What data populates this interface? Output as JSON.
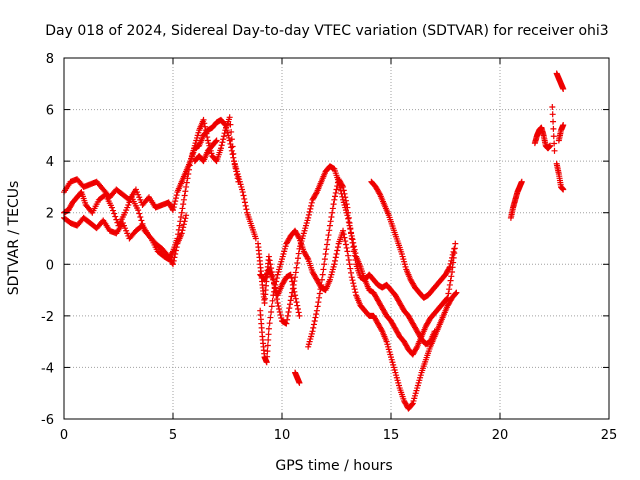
{
  "chart_data": {
    "type": "scatter",
    "title": "Day 018 of 2024, Sidereal Day-to-day VTEC variation (SDTVAR) for receiver ohi3",
    "xlabel": "GPS time / hours",
    "ylabel": "SDTVAR / TECUs",
    "xlim": [
      0,
      25
    ],
    "ylim": [
      -6,
      8
    ],
    "xticks": [
      "0",
      "5",
      "10",
      "15",
      "20",
      "25"
    ],
    "yticks": [
      "-6",
      "-4",
      "-2",
      "0",
      "2",
      "4",
      "6",
      "8"
    ],
    "grid": true,
    "marker": "+",
    "color": "#ee0000",
    "series": [
      {
        "x": [
          0.0,
          0.3,
          0.6,
          0.9,
          1.2,
          1.5,
          1.8,
          2.1,
          2.4,
          2.7,
          3.0,
          3.3,
          3.6,
          3.9,
          4.2,
          4.5,
          4.8,
          5.0,
          5.2,
          5.4,
          5.6,
          5.8,
          6.0,
          6.2,
          6.4,
          6.6,
          6.8,
          7.0,
          7.2,
          7.4,
          7.6,
          7.8,
          8.0,
          8.2,
          8.4,
          8.6,
          8.8
        ],
        "y": [
          2.8,
          3.2,
          3.3,
          3.0,
          3.1,
          3.2,
          2.9,
          2.6,
          2.9,
          2.7,
          2.5,
          2.9,
          2.3,
          2.6,
          2.2,
          2.3,
          2.4,
          2.1,
          2.8,
          3.2,
          3.6,
          4.0,
          4.5,
          4.6,
          5.0,
          5.2,
          5.3,
          5.5,
          5.6,
          5.4,
          4.8,
          4.0,
          3.4,
          2.8,
          2.0,
          1.5,
          1.0
        ]
      },
      {
        "x": [
          0.0,
          0.2,
          0.4,
          0.6,
          0.8,
          1.0,
          1.3,
          1.6,
          1.9,
          2.2,
          2.5,
          2.8,
          3.1,
          3.4,
          3.7,
          4.0,
          4.3,
          4.6,
          4.8,
          5.0,
          5.2,
          5.4,
          5.6,
          5.8,
          6.0,
          6.2,
          6.4,
          6.6,
          6.8,
          7.0,
          7.2,
          7.4,
          7.6,
          7.8,
          8.0
        ],
        "y": [
          2.0,
          2.1,
          2.4,
          2.6,
          2.8,
          2.3,
          2.0,
          2.5,
          2.7,
          2.2,
          1.5,
          2.0,
          2.6,
          2.1,
          1.3,
          1.0,
          0.5,
          0.3,
          0.2,
          0.5,
          1.0,
          2.0,
          3.0,
          4.0,
          4.6,
          5.2,
          5.6,
          4.8,
          4.2,
          4.0,
          4.5,
          5.2,
          5.7,
          4.0,
          3.2
        ]
      },
      {
        "x": [
          0.0,
          0.3,
          0.6,
          0.9,
          1.2,
          1.5,
          1.8,
          2.1,
          2.4,
          2.7,
          3.0,
          3.3,
          3.6,
          3.9,
          4.2,
          4.5,
          4.8,
          5.0,
          5.2,
          5.4,
          5.6
        ],
        "y": [
          1.8,
          1.6,
          1.5,
          1.8,
          1.6,
          1.4,
          1.7,
          1.3,
          1.2,
          1.6,
          1.0,
          1.3,
          1.5,
          1.1,
          0.8,
          0.6,
          0.3,
          0.0,
          0.8,
          1.2,
          1.9
        ]
      },
      {
        "x": [
          6.0,
          6.2,
          6.4,
          6.6,
          6.8,
          7.0
        ],
        "y": [
          4.0,
          4.2,
          4.0,
          4.4,
          4.6,
          4.8
        ]
      },
      {
        "x": [
          8.9,
          9.0,
          9.1,
          9.2,
          9.3,
          9.4,
          9.6,
          9.8,
          10.0,
          10.2,
          10.4,
          10.6,
          10.8,
          11.0,
          11.2,
          11.4,
          11.6,
          11.8,
          12.0,
          12.2,
          12.4,
          12.6,
          12.8,
          13.0,
          13.2,
          13.4,
          13.6,
          13.8,
          14.0,
          14.2,
          14.4,
          14.6,
          14.8,
          15.0,
          15.2,
          15.4,
          15.6,
          15.8,
          16.0,
          16.2,
          16.4,
          16.6,
          16.8,
          17.0,
          17.2,
          17.4,
          17.6,
          17.8,
          17.95
        ],
        "y": [
          0.8,
          0.0,
          -0.8,
          -1.5,
          -0.5,
          0.3,
          -0.6,
          -1.5,
          -2.2,
          -2.3,
          -1.4,
          -0.5,
          0.6,
          1.2,
          1.8,
          2.5,
          2.8,
          3.2,
          3.6,
          3.8,
          3.7,
          3.2,
          2.5,
          1.9,
          1.1,
          0.3,
          -0.1,
          -0.6,
          -1.0,
          -1.1,
          -1.4,
          -1.7,
          -2.0,
          -2.2,
          -2.5,
          -2.8,
          -3.0,
          -3.3,
          -3.5,
          -3.2,
          -2.8,
          -2.4,
          -2.1,
          -1.9,
          -1.7,
          -1.5,
          -1.3,
          -0.3,
          0.8
        ]
      },
      {
        "x": [
          9.0,
          9.1,
          9.2,
          9.3,
          9.4,
          9.6,
          9.8,
          10.0,
          10.2,
          10.4,
          10.6,
          10.8,
          11.0,
          11.2,
          11.4,
          11.6,
          11.8,
          12.0,
          12.2,
          12.4,
          12.6,
          12.8,
          13.0,
          13.2,
          13.4,
          13.6,
          13.8,
          14.0,
          14.2,
          14.4,
          14.6,
          14.8,
          15.0,
          15.2,
          15.4,
          15.6,
          15.8,
          16.0,
          16.2,
          16.4,
          16.6,
          16.8,
          17.0,
          17.2,
          17.4,
          17.6,
          17.8,
          18.0
        ],
        "y": [
          -1.8,
          -2.8,
          -3.6,
          -3.8,
          -2.5,
          -1.2,
          -0.4,
          0.2,
          0.8,
          1.1,
          1.3,
          1.0,
          0.5,
          0.2,
          -0.3,
          -0.6,
          -0.9,
          -1.0,
          -0.6,
          0.0,
          0.8,
          1.3,
          0.5,
          -0.5,
          -1.2,
          -1.6,
          -1.8,
          -2.0,
          -2.0,
          -2.3,
          -2.6,
          -3.0,
          -3.6,
          -4.2,
          -4.8,
          -5.3,
          -5.6,
          -5.4,
          -4.8,
          -4.2,
          -3.7,
          -3.2,
          -2.8,
          -2.4,
          -2.0,
          -1.6,
          -1.3,
          -1.1
        ]
      },
      {
        "x": [
          9.0,
          9.2,
          9.4,
          9.6,
          9.8,
          10.0,
          10.2,
          10.4,
          10.6,
          10.8
        ],
        "y": [
          -0.4,
          -0.6,
          -0.2,
          -0.6,
          -1.2,
          -0.8,
          -0.5,
          -0.4,
          -1.2,
          -2.0
        ]
      },
      {
        "x": [
          10.6,
          10.7,
          10.8
        ],
        "y": [
          -4.2,
          -4.4,
          -4.6
        ]
      },
      {
        "x": [
          11.2,
          11.4,
          11.6,
          11.8,
          12.0,
          12.2,
          12.4,
          12.6,
          12.8,
          13.0,
          13.2,
          13.4,
          13.6,
          13.8,
          14.0,
          14.2,
          14.4,
          14.6,
          14.8,
          15.0,
          15.2,
          15.4,
          15.6,
          15.8,
          16.0,
          16.2,
          16.4,
          16.6,
          16.8,
          17.0
        ],
        "y": [
          -3.2,
          -2.6,
          -1.8,
          -0.8,
          0.4,
          1.5,
          2.5,
          3.3,
          3.0,
          2.2,
          1.0,
          0.0,
          -0.5,
          -0.6,
          -0.4,
          -0.6,
          -0.8,
          -0.9,
          -0.8,
          -1.0,
          -1.2,
          -1.5,
          -1.8,
          -2.0,
          -2.3,
          -2.6,
          -2.9,
          -3.1,
          -3.0,
          -2.6
        ]
      },
      {
        "x": [
          14.1,
          14.3,
          14.5,
          14.7,
          14.9,
          15.1,
          15.3,
          15.5,
          15.7,
          15.9,
          16.1,
          16.3,
          16.5,
          16.7,
          16.9,
          17.1,
          17.3,
          17.5,
          17.7,
          17.9
        ],
        "y": [
          3.2,
          3.0,
          2.7,
          2.3,
          1.9,
          1.4,
          0.9,
          0.4,
          -0.2,
          -0.6,
          -0.9,
          -1.1,
          -1.3,
          -1.2,
          -1.0,
          -0.8,
          -0.6,
          -0.4,
          -0.1,
          0.6
        ]
      },
      {
        "x": [
          20.5,
          20.6,
          20.7,
          20.8,
          20.9,
          21.0
        ],
        "y": [
          1.8,
          2.2,
          2.5,
          2.8,
          3.0,
          3.2
        ]
      },
      {
        "x": [
          21.6,
          21.7,
          21.8,
          21.9,
          22.0,
          22.1,
          22.2,
          22.3
        ],
        "y": [
          4.7,
          5.0,
          5.2,
          5.3,
          5.0,
          4.6,
          4.5,
          4.6
        ]
      },
      {
        "x": [
          22.4,
          22.5
        ],
        "y": [
          6.1,
          4.4
        ]
      },
      {
        "x": [
          22.6,
          22.7,
          22.8,
          22.9
        ],
        "y": [
          7.4,
          7.2,
          7.0,
          6.8
        ]
      },
      {
        "x": [
          22.6,
          22.7,
          22.8,
          22.9
        ],
        "y": [
          3.9,
          3.5,
          3.0,
          2.9
        ]
      },
      {
        "x": [
          22.7,
          22.8,
          22.9
        ],
        "y": [
          4.8,
          5.2,
          5.4
        ]
      }
    ]
  }
}
